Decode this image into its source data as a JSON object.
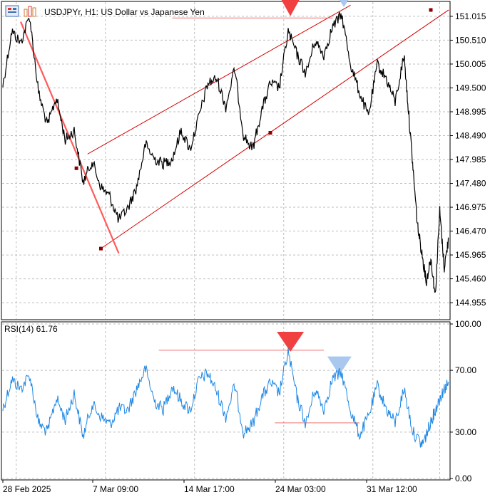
{
  "header": {
    "symbol_title": "USDJPYr, H1:  US Dollar vs Japanese Yen",
    "icons": [
      "chart-window-icon",
      "bar-chart-icon"
    ]
  },
  "chart_data": [
    {
      "type": "line",
      "name": "price-chart",
      "title": "USDJPYr, H1:  US Dollar vs Japanese Yen",
      "ylim": [
        144.64,
        151.27
      ],
      "y_ticks": [
        "151.015",
        "150.510",
        "150.005",
        "149.500",
        "148.995",
        "148.490",
        "147.985",
        "147.480",
        "146.975",
        "146.470",
        "145.965",
        "145.460",
        "144.955"
      ],
      "x_ticks": [
        "28 Feb 2025",
        "7 Mar 09:00",
        "14 Mar 17:00",
        "24 Mar 03:00",
        "31 Mar 12:00"
      ],
      "grid": true,
      "series": [
        {
          "values": [
            {
              "t": 0.0,
              "v": 149.55
            },
            {
              "t": 0.02,
              "v": 150.7
            },
            {
              "t": 0.04,
              "v": 150.45
            },
            {
              "t": 0.06,
              "v": 151.02
            },
            {
              "t": 0.08,
              "v": 149.4
            },
            {
              "t": 0.1,
              "v": 148.7
            },
            {
              "t": 0.12,
              "v": 149.3
            },
            {
              "t": 0.14,
              "v": 148.4
            },
            {
              "t": 0.16,
              "v": 148.6
            },
            {
              "t": 0.18,
              "v": 147.5
            },
            {
              "t": 0.2,
              "v": 147.95
            },
            {
              "t": 0.22,
              "v": 147.4
            },
            {
              "t": 0.24,
              "v": 147.2
            },
            {
              "t": 0.26,
              "v": 146.7
            },
            {
              "t": 0.28,
              "v": 146.95
            },
            {
              "t": 0.3,
              "v": 147.4
            },
            {
              "t": 0.32,
              "v": 148.3
            },
            {
              "t": 0.34,
              "v": 148.0
            },
            {
              "t": 0.36,
              "v": 147.9
            },
            {
              "t": 0.38,
              "v": 148.0
            },
            {
              "t": 0.4,
              "v": 148.6
            },
            {
              "t": 0.42,
              "v": 148.2
            },
            {
              "t": 0.44,
              "v": 148.9
            },
            {
              "t": 0.46,
              "v": 149.6
            },
            {
              "t": 0.48,
              "v": 149.7
            },
            {
              "t": 0.5,
              "v": 149.1
            },
            {
              "t": 0.52,
              "v": 149.9
            },
            {
              "t": 0.54,
              "v": 148.5
            },
            {
              "t": 0.56,
              "v": 148.2
            },
            {
              "t": 0.58,
              "v": 149.0
            },
            {
              "t": 0.6,
              "v": 149.6
            },
            {
              "t": 0.62,
              "v": 149.5
            },
            {
              "t": 0.64,
              "v": 150.7
            },
            {
              "t": 0.66,
              "v": 150.2
            },
            {
              "t": 0.68,
              "v": 149.8
            },
            {
              "t": 0.7,
              "v": 150.5
            },
            {
              "t": 0.72,
              "v": 150.2
            },
            {
              "t": 0.74,
              "v": 150.8
            },
            {
              "t": 0.76,
              "v": 151.05
            },
            {
              "t": 0.78,
              "v": 150.0
            },
            {
              "t": 0.8,
              "v": 149.4
            },
            {
              "t": 0.82,
              "v": 148.9
            },
            {
              "t": 0.84,
              "v": 150.0
            },
            {
              "t": 0.86,
              "v": 149.7
            },
            {
              "t": 0.88,
              "v": 149.2
            },
            {
              "t": 0.9,
              "v": 150.2
            },
            {
              "t": 0.91,
              "v": 149.0
            },
            {
              "t": 0.92,
              "v": 147.8
            },
            {
              "t": 0.93,
              "v": 146.6
            },
            {
              "t": 0.94,
              "v": 146.0
            },
            {
              "t": 0.95,
              "v": 145.4
            },
            {
              "t": 0.96,
              "v": 145.9
            },
            {
              "t": 0.97,
              "v": 145.1
            },
            {
              "t": 0.98,
              "v": 146.9
            },
            {
              "t": 0.99,
              "v": 145.7
            },
            {
              "t": 1.0,
              "v": 146.3
            }
          ]
        }
      ],
      "color": "#000000",
      "annotations": {
        "channel_color": "#d40000",
        "trendline_color": "#ff5a5a",
        "level_line_color": "#f07070",
        "sell_marker_color": "#f04040",
        "buy_marker_color": "#a8c8f0",
        "channel_upper": [
          {
            "t": 0.19,
            "v": 148.1
          },
          {
            "t": 0.78,
            "v": 151.25
          }
        ],
        "channel_lower": [
          {
            "t": 0.22,
            "v": 146.1
          },
          {
            "t": 1.0,
            "v": 151.15
          }
        ],
        "trendline": [
          {
            "t": 0.04,
            "v": 150.9
          },
          {
            "t": 0.26,
            "v": 146.0
          }
        ],
        "resistance_level": [
          {
            "t": 0.38,
            "v": 150.98
          },
          {
            "t": 0.74,
            "v": 150.98
          }
        ],
        "anchor_points": [
          {
            "t": 0.165,
            "v": 147.8
          },
          {
            "t": 0.22,
            "v": 146.1
          },
          {
            "t": 0.6,
            "v": 148.55
          },
          {
            "t": 0.96,
            "v": 151.15
          }
        ],
        "sell_markers": [
          {
            "t": 0.645,
            "v": 151.02
          }
        ],
        "buy_markers": [
          {
            "t": 0.765,
            "v": 151.27
          }
        ]
      }
    },
    {
      "type": "line",
      "name": "rsi-indicator",
      "title": "RSI(14) 61.76",
      "ylim": [
        0,
        100
      ],
      "y_ticks": [
        "100.00",
        "70.00",
        "30.00",
        "0.00"
      ],
      "grid": true,
      "color": "#1e88e5",
      "series": [
        {
          "values": [
            {
              "t": 0.0,
              "v": 45
            },
            {
              "t": 0.02,
              "v": 64
            },
            {
              "t": 0.04,
              "v": 58
            },
            {
              "t": 0.06,
              "v": 67
            },
            {
              "t": 0.08,
              "v": 36
            },
            {
              "t": 0.1,
              "v": 30
            },
            {
              "t": 0.12,
              "v": 52
            },
            {
              "t": 0.14,
              "v": 38
            },
            {
              "t": 0.16,
              "v": 55
            },
            {
              "t": 0.18,
              "v": 27
            },
            {
              "t": 0.2,
              "v": 48
            },
            {
              "t": 0.22,
              "v": 40
            },
            {
              "t": 0.24,
              "v": 35
            },
            {
              "t": 0.26,
              "v": 45
            },
            {
              "t": 0.28,
              "v": 44
            },
            {
              "t": 0.3,
              "v": 58
            },
            {
              "t": 0.32,
              "v": 71
            },
            {
              "t": 0.34,
              "v": 50
            },
            {
              "t": 0.36,
              "v": 45
            },
            {
              "t": 0.38,
              "v": 60
            },
            {
              "t": 0.4,
              "v": 50
            },
            {
              "t": 0.42,
              "v": 44
            },
            {
              "t": 0.44,
              "v": 64
            },
            {
              "t": 0.46,
              "v": 68
            },
            {
              "t": 0.48,
              "v": 56
            },
            {
              "t": 0.5,
              "v": 40
            },
            {
              "t": 0.52,
              "v": 60
            },
            {
              "t": 0.54,
              "v": 30
            },
            {
              "t": 0.56,
              "v": 35
            },
            {
              "t": 0.58,
              "v": 52
            },
            {
              "t": 0.6,
              "v": 62
            },
            {
              "t": 0.62,
              "v": 55
            },
            {
              "t": 0.64,
              "v": 82
            },
            {
              "t": 0.66,
              "v": 52
            },
            {
              "t": 0.68,
              "v": 35
            },
            {
              "t": 0.7,
              "v": 58
            },
            {
              "t": 0.72,
              "v": 45
            },
            {
              "t": 0.74,
              "v": 65
            },
            {
              "t": 0.76,
              "v": 68
            },
            {
              "t": 0.78,
              "v": 44
            },
            {
              "t": 0.8,
              "v": 28
            },
            {
              "t": 0.82,
              "v": 40
            },
            {
              "t": 0.84,
              "v": 60
            },
            {
              "t": 0.86,
              "v": 45
            },
            {
              "t": 0.88,
              "v": 36
            },
            {
              "t": 0.9,
              "v": 58
            },
            {
              "t": 0.92,
              "v": 30
            },
            {
              "t": 0.94,
              "v": 22
            },
            {
              "t": 0.95,
              "v": 28
            },
            {
              "t": 0.96,
              "v": 37
            },
            {
              "t": 0.97,
              "v": 44
            },
            {
              "t": 0.98,
              "v": 52
            },
            {
              "t": 0.99,
              "v": 58
            },
            {
              "t": 1.0,
              "v": 61.76
            }
          ]
        }
      ],
      "annotations": {
        "level_line_color": "#f07070",
        "upper_level": [
          {
            "t": 0.35,
            "v": 83
          },
          {
            "t": 0.72,
            "v": 83
          }
        ],
        "lower_level": [
          {
            "t": 0.61,
            "v": 36
          },
          {
            "t": 0.8,
            "v": 36
          }
        ],
        "sell_markers": [
          {
            "t": 0.645,
            "v": 82
          }
        ],
        "buy_markers": [
          {
            "t": 0.755,
            "v": 67
          }
        ]
      }
    }
  ]
}
